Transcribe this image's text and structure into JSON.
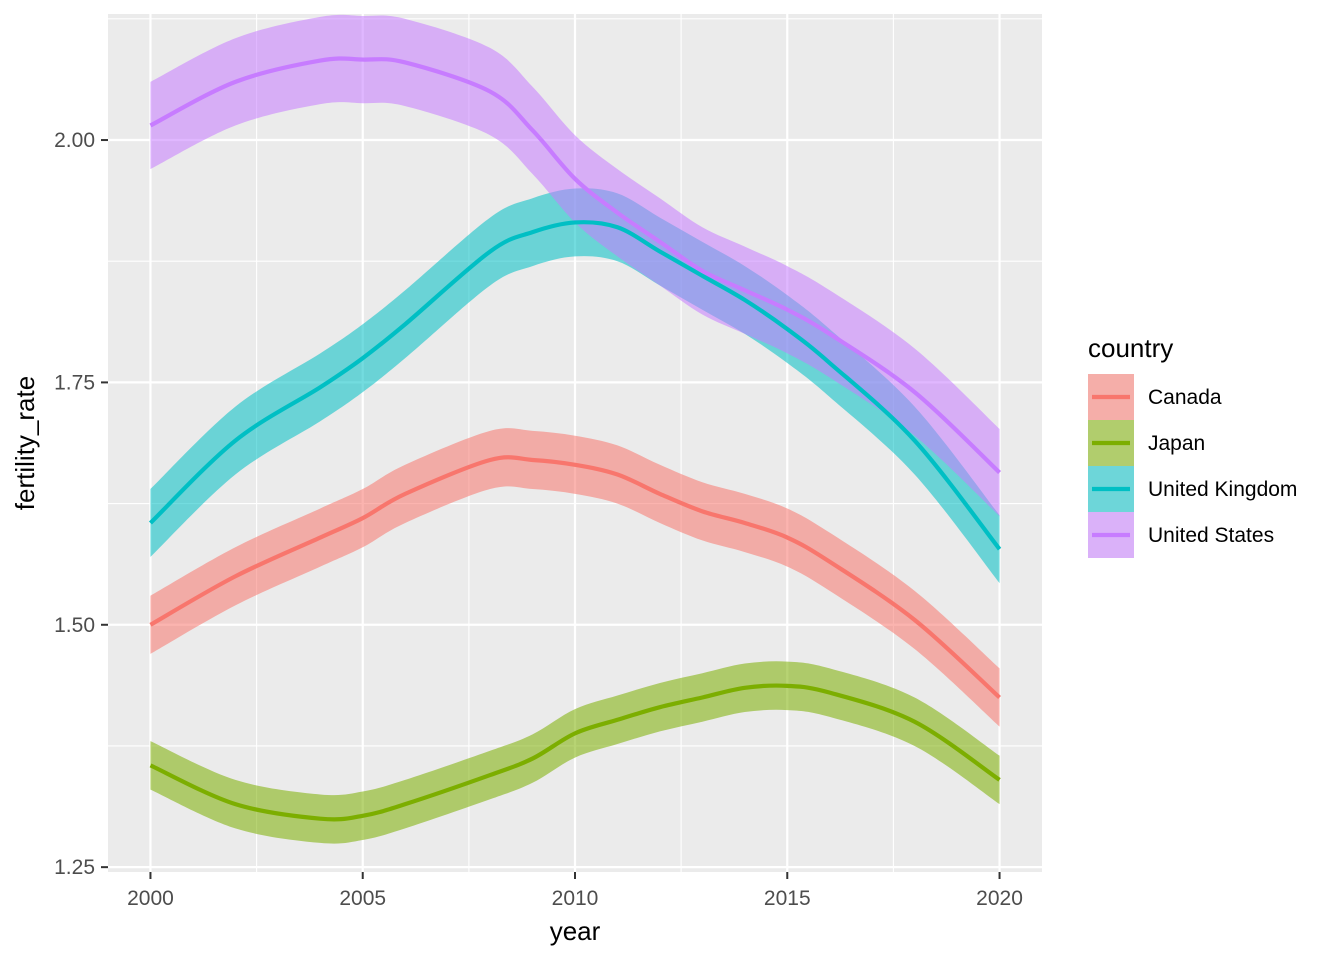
{
  "chart_data": {
    "type": "line",
    "title": "",
    "xlabel": "year",
    "ylabel": "fertility_rate",
    "xlim": [
      1999,
      2021
    ],
    "ylim": [
      1.245,
      2.13
    ],
    "x_ticks": [
      2000,
      2005,
      2010,
      2015,
      2020
    ],
    "x_tick_labels": [
      "2000",
      "2005",
      "2010",
      "2015",
      "2020"
    ],
    "y_ticks": [
      1.25,
      1.5,
      1.75,
      2.0
    ],
    "y_tick_labels": [
      "1.25",
      "1.50",
      "1.75",
      "2.00"
    ],
    "grid": true,
    "legend": {
      "title": "country",
      "position": "right"
    },
    "x": [
      2000,
      2002,
      2004,
      2005,
      2006,
      2008,
      2009,
      2010,
      2011,
      2012,
      2013,
      2014,
      2015,
      2016,
      2018,
      2020
    ],
    "series": [
      {
        "name": "Canada",
        "color": "#F8766D",
        "values": [
          1.5,
          1.55,
          1.59,
          1.61,
          1.635,
          1.67,
          1.67,
          1.665,
          1.655,
          1.635,
          1.617,
          1.605,
          1.59,
          1.565,
          1.505,
          1.425
        ],
        "band": 0.03
      },
      {
        "name": "Japan",
        "color": "#7CAE00",
        "values": [
          1.355,
          1.315,
          1.3,
          1.303,
          1.315,
          1.345,
          1.362,
          1.388,
          1.402,
          1.415,
          1.425,
          1.435,
          1.437,
          1.43,
          1.4,
          1.34
        ],
        "band": 0.025
      },
      {
        "name": "United Kingdom",
        "color": "#00BFC4",
        "values": [
          1.605,
          1.69,
          1.745,
          1.775,
          1.81,
          1.885,
          1.905,
          1.915,
          1.91,
          1.885,
          1.86,
          1.835,
          1.805,
          1.77,
          1.69,
          1.578
        ],
        "band": 0.035
      },
      {
        "name": "United States",
        "color": "#C77CFF",
        "values": [
          2.015,
          2.06,
          2.082,
          2.083,
          2.08,
          2.05,
          2.01,
          1.96,
          1.925,
          1.895,
          1.865,
          1.845,
          1.825,
          1.8,
          1.74,
          1.657
        ],
        "band": 0.045
      }
    ]
  }
}
